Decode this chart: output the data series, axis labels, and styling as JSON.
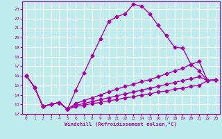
{
  "xlabel": "Windchill (Refroidissement éolien,°C)",
  "xlim": [
    -0.5,
    23.5
  ],
  "ylim": [
    12,
    23.8
  ],
  "yticks": [
    12,
    13,
    14,
    15,
    16,
    17,
    18,
    19,
    20,
    21,
    22,
    23
  ],
  "xticks": [
    0,
    1,
    2,
    3,
    4,
    5,
    6,
    7,
    8,
    9,
    10,
    11,
    12,
    13,
    14,
    15,
    16,
    17,
    18,
    19,
    20,
    21,
    22,
    23
  ],
  "bg_color": "#c0ecee",
  "grid_color": "#ffffff",
  "line_color": "#aa00aa",
  "line1_x": [
    0,
    1,
    2,
    3,
    4,
    5,
    6,
    7,
    8,
    9,
    10,
    11,
    12,
    13,
    14,
    15,
    16,
    17,
    18,
    19,
    20,
    21,
    22,
    23
  ],
  "line1_y": [
    16.0,
    14.8,
    12.8,
    13.0,
    13.2,
    12.5,
    14.5,
    16.3,
    18.1,
    19.9,
    21.7,
    22.2,
    22.5,
    23.5,
    23.3,
    22.5,
    21.3,
    20.2,
    19.0,
    18.9,
    17.2,
    16.5,
    15.5,
    15.6
  ],
  "line2_x": [
    0,
    1,
    2,
    3,
    4,
    5,
    6,
    7,
    8,
    9,
    10,
    11,
    12,
    13,
    14,
    15,
    16,
    17,
    18,
    19,
    20,
    21,
    22,
    23
  ],
  "line2_y": [
    16.0,
    14.8,
    12.8,
    13.0,
    13.2,
    12.5,
    13.1,
    13.4,
    13.7,
    14.0,
    14.3,
    14.6,
    14.9,
    15.1,
    15.4,
    15.6,
    15.9,
    16.2,
    16.5,
    16.8,
    17.2,
    17.5,
    15.5,
    15.6
  ],
  "line3_x": [
    0,
    1,
    2,
    3,
    4,
    5,
    6,
    7,
    8,
    9,
    10,
    11,
    12,
    13,
    14,
    15,
    16,
    17,
    18,
    19,
    20,
    21,
    22,
    23
  ],
  "line3_y": [
    16.0,
    14.8,
    12.8,
    13.0,
    13.2,
    12.5,
    12.9,
    13.1,
    13.3,
    13.5,
    13.7,
    13.9,
    14.1,
    14.3,
    14.5,
    14.7,
    14.9,
    15.1,
    15.3,
    15.5,
    15.7,
    15.9,
    15.5,
    15.6
  ],
  "line4_x": [
    0,
    1,
    2,
    3,
    4,
    5,
    6,
    7,
    8,
    9,
    10,
    11,
    12,
    13,
    14,
    15,
    16,
    17,
    18,
    19,
    20,
    21,
    22,
    23
  ],
  "line4_y": [
    16.0,
    14.8,
    12.8,
    13.0,
    13.2,
    12.5,
    12.8,
    12.9,
    13.1,
    13.2,
    13.4,
    13.5,
    13.7,
    13.8,
    14.0,
    14.1,
    14.3,
    14.4,
    14.6,
    14.7,
    14.9,
    15.0,
    15.5,
    15.6
  ],
  "marker": "D",
  "marker_size": 2.5,
  "line_width": 1.0
}
